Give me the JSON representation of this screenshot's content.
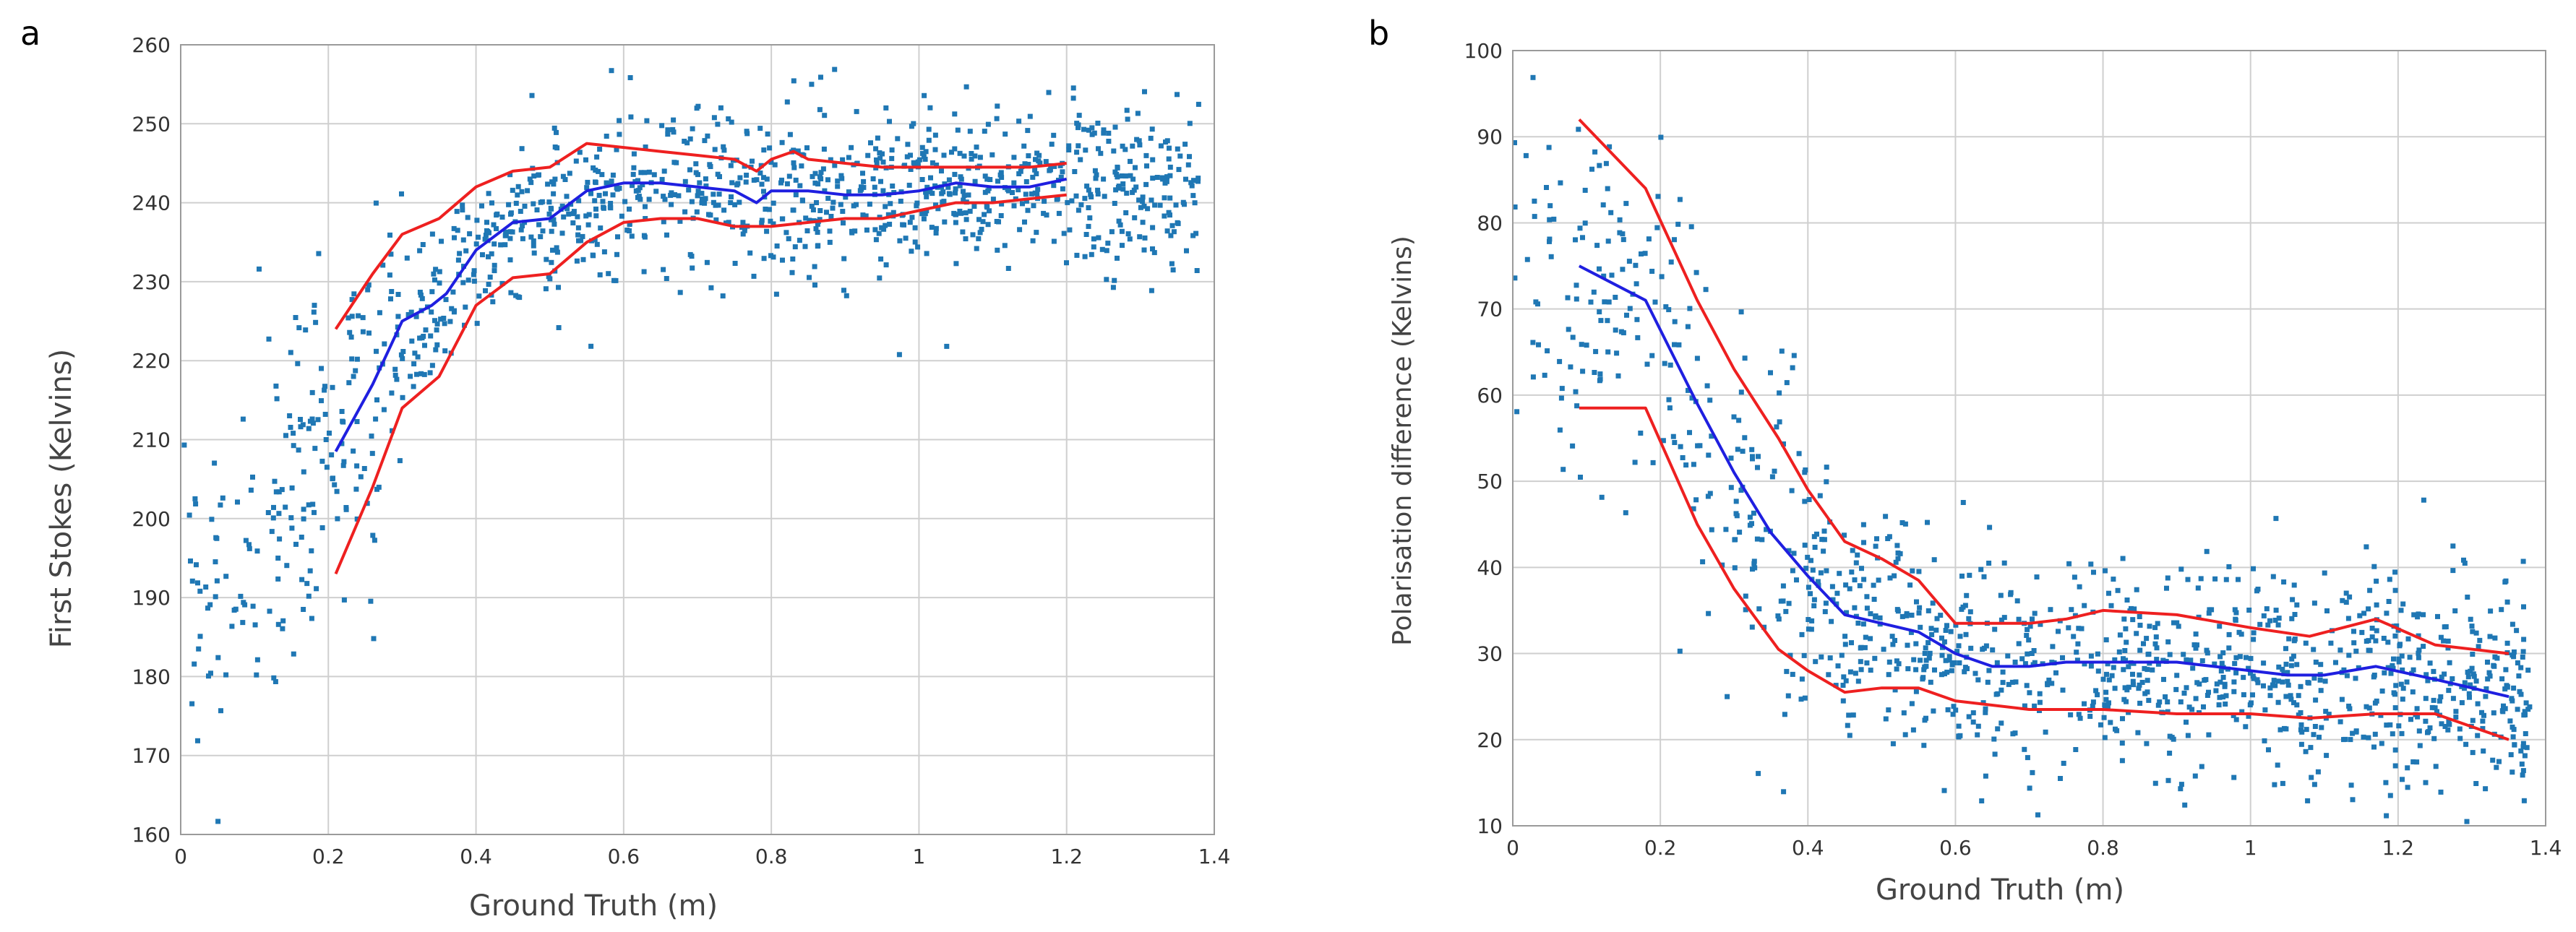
{
  "chart_data": [
    {
      "panel_label": "a",
      "type": "scatter",
      "xlabel": "Ground Truth (m)",
      "ylabel": "First Stokes (Kelvins)",
      "xlim": [
        0,
        1.4
      ],
      "ylim": [
        160,
        260
      ],
      "xticks": [
        0,
        0.2,
        0.4,
        0.6,
        0.8,
        1,
        1.2,
        1.4
      ],
      "yticks": [
        160,
        170,
        180,
        190,
        200,
        210,
        220,
        230,
        240,
        250,
        260
      ],
      "xtick_labels": [
        "0",
        "0.2",
        "0.4",
        "0.6",
        "0.8",
        "1",
        "1.2",
        "1.4"
      ],
      "ytick_labels": [
        "160",
        "170",
        "180",
        "190",
        "200",
        "210",
        "220",
        "230",
        "240",
        "250",
        "260"
      ],
      "grid": true,
      "colors": {
        "points": "#1f77b4",
        "mean": "#1f1fe0",
        "bounds": "#ee2020"
      },
      "scatter_trend": [
        [
          0.0,
          190
        ],
        [
          0.05,
          192
        ],
        [
          0.1,
          193
        ],
        [
          0.15,
          200
        ],
        [
          0.2,
          209
        ],
        [
          0.25,
          216
        ],
        [
          0.3,
          224
        ],
        [
          0.35,
          228
        ],
        [
          0.4,
          234
        ],
        [
          0.45,
          237
        ],
        [
          0.5,
          239
        ],
        [
          0.55,
          241
        ],
        [
          0.6,
          242
        ],
        [
          0.7,
          242
        ],
        [
          0.8,
          241
        ],
        [
          0.9,
          241
        ],
        [
          1.0,
          242
        ],
        [
          1.1,
          242
        ],
        [
          1.2,
          242
        ],
        [
          1.3,
          242
        ],
        [
          1.4,
          242
        ]
      ],
      "scatter_spread": 5,
      "scatter_xrange": [
        0.0,
        1.38
      ],
      "scatter_count": 1200,
      "series": [
        {
          "name": "mean",
          "style": "line",
          "color": "#1f1fe0",
          "x": [
            0.21,
            0.26,
            0.3,
            0.34,
            0.36,
            0.4,
            0.45,
            0.5,
            0.55,
            0.6,
            0.65,
            0.7,
            0.75,
            0.78,
            0.8,
            0.85,
            0.9,
            0.95,
            1.0,
            1.05,
            1.1,
            1.15,
            1.2
          ],
          "y": [
            208.5,
            217,
            225,
            227,
            228.5,
            234,
            237.5,
            238,
            241.5,
            242.5,
            242.5,
            242,
            241.5,
            240,
            241.5,
            241.5,
            241,
            241,
            241.5,
            242.5,
            242,
            242,
            243
          ]
        },
        {
          "name": "upper bound",
          "style": "line",
          "color": "#ee2020",
          "x": [
            0.21,
            0.26,
            0.3,
            0.35,
            0.4,
            0.45,
            0.5,
            0.55,
            0.6,
            0.65,
            0.7,
            0.75,
            0.78,
            0.8,
            0.83,
            0.85,
            0.9,
            0.95,
            1.0,
            1.05,
            1.1,
            1.15,
            1.2
          ],
          "y": [
            224,
            231,
            236,
            238,
            242,
            244,
            244.5,
            247.5,
            247,
            246.5,
            246,
            245.5,
            244,
            245.5,
            246.5,
            245.5,
            245,
            244.5,
            244.5,
            244.5,
            244.5,
            244.5,
            245
          ]
        },
        {
          "name": "lower bound",
          "style": "line",
          "color": "#ee2020",
          "x": [
            0.21,
            0.26,
            0.3,
            0.35,
            0.4,
            0.45,
            0.5,
            0.55,
            0.6,
            0.65,
            0.7,
            0.75,
            0.8,
            0.85,
            0.9,
            0.95,
            1.0,
            1.05,
            1.1,
            1.15,
            1.2
          ],
          "y": [
            193,
            204,
            214,
            218,
            227,
            230.5,
            231,
            235,
            237.5,
            238,
            238,
            237,
            237,
            237.5,
            238,
            238,
            239,
            240,
            240,
            240.5,
            241
          ]
        }
      ]
    },
    {
      "panel_label": "b",
      "type": "scatter",
      "xlabel": "Ground Truth (m)",
      "ylabel": "Polarisation difference (Kelvins)",
      "xlim": [
        0,
        1.4
      ],
      "ylim": [
        10,
        100
      ],
      "xticks": [
        0,
        0.2,
        0.4,
        0.6,
        0.8,
        1,
        1.2,
        1.4
      ],
      "yticks": [
        10,
        20,
        30,
        40,
        50,
        60,
        70,
        80,
        90,
        100
      ],
      "xtick_labels": [
        "0",
        "0.2",
        "0.4",
        "0.6",
        "0.8",
        "1",
        "1.2",
        "1.4"
      ],
      "ytick_labels": [
        "10",
        "20",
        "30",
        "40",
        "50",
        "60",
        "70",
        "80",
        "90",
        "100"
      ],
      "grid": true,
      "colors": {
        "points": "#1f77b4",
        "mean": "#1f1fe0",
        "bounds": "#ee2020"
      },
      "scatter_trend": [
        [
          0.0,
          76
        ],
        [
          0.05,
          74
        ],
        [
          0.1,
          73
        ],
        [
          0.15,
          72
        ],
        [
          0.2,
          66
        ],
        [
          0.25,
          57
        ],
        [
          0.3,
          50
        ],
        [
          0.35,
          43
        ],
        [
          0.4,
          37
        ],
        [
          0.45,
          34
        ],
        [
          0.5,
          32
        ],
        [
          0.55,
          31
        ],
        [
          0.6,
          29
        ],
        [
          0.7,
          28.5
        ],
        [
          0.8,
          28.5
        ],
        [
          0.9,
          28
        ],
        [
          1.0,
          27.5
        ],
        [
          1.1,
          27
        ],
        [
          1.2,
          27
        ],
        [
          1.3,
          26
        ],
        [
          1.4,
          25
        ]
      ],
      "scatter_spread": 6,
      "scatter_xrange": [
        0.0,
        1.38
      ],
      "scatter_count": 1200,
      "series": [
        {
          "name": "mean",
          "style": "line",
          "color": "#1f1fe0",
          "x": [
            0.09,
            0.18,
            0.25,
            0.3,
            0.35,
            0.4,
            0.45,
            0.5,
            0.55,
            0.6,
            0.65,
            0.7,
            0.75,
            0.8,
            0.85,
            0.9,
            0.95,
            1.0,
            1.05,
            1.1,
            1.17,
            1.25,
            1.35
          ],
          "y": [
            75,
            71,
            59,
            51,
            44,
            39,
            34.5,
            33.5,
            32.5,
            30,
            28.5,
            28.5,
            29,
            29,
            29,
            29,
            28.5,
            28,
            27.5,
            27.5,
            28.5,
            27,
            25
          ]
        },
        {
          "name": "upper bound",
          "style": "line",
          "color": "#ee2020",
          "x": [
            0.09,
            0.18,
            0.25,
            0.3,
            0.36,
            0.4,
            0.45,
            0.5,
            0.55,
            0.6,
            0.7,
            0.75,
            0.8,
            0.9,
            1.0,
            1.08,
            1.17,
            1.25,
            1.35
          ],
          "y": [
            92,
            84,
            71,
            63,
            55,
            49,
            43,
            41,
            38.5,
            33.5,
            33.5,
            34,
            35,
            34.5,
            33,
            32,
            34,
            31,
            30
          ]
        },
        {
          "name": "lower bound",
          "style": "line",
          "color": "#ee2020",
          "x": [
            0.09,
            0.18,
            0.25,
            0.3,
            0.36,
            0.4,
            0.45,
            0.5,
            0.55,
            0.6,
            0.7,
            0.8,
            0.9,
            1.0,
            1.08,
            1.17,
            1.25,
            1.35
          ],
          "y": [
            58.5,
            58.5,
            45,
            37.5,
            30.5,
            28,
            25.5,
            26,
            26,
            24.5,
            23.5,
            23.5,
            23,
            23,
            22.5,
            23,
            23,
            20
          ]
        }
      ]
    }
  ]
}
